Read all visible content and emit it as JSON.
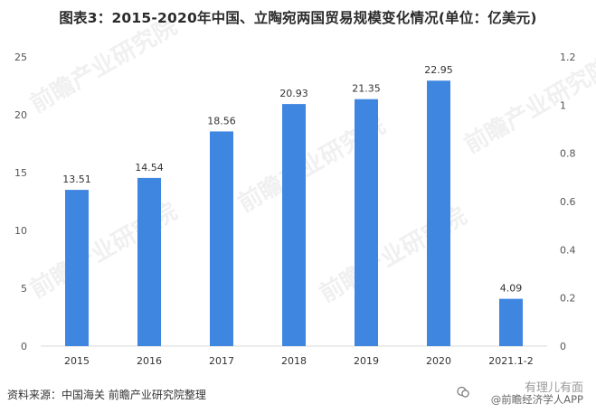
{
  "chart_data": {
    "type": "bar",
    "title": "图表3：2015-2020年中国、立陶宛两国贸易规模变化情况(单位：亿美元)",
    "categories": [
      "2015",
      "2016",
      "2017",
      "2018",
      "2019",
      "2020",
      "2021.1-2"
    ],
    "values": [
      13.51,
      14.54,
      18.56,
      20.93,
      21.35,
      22.95,
      4.09
    ],
    "data_labels": [
      "13.51",
      "14.54",
      "18.56",
      "20.93",
      "21.35",
      "22.95",
      "4.09"
    ],
    "ylim": [
      0,
      25
    ],
    "yticks": [
      "0",
      "5",
      "10",
      "15",
      "20",
      "25"
    ],
    "y2lim": [
      0,
      1.2
    ],
    "y2ticks": [
      "0",
      "0.2",
      "0.4",
      "0.6",
      "0.8",
      "1",
      "1.2"
    ],
    "grid": false,
    "bar_color": "#3f86e0"
  },
  "source_text": "资料来源：中国海关 前瞻产业研究院整理",
  "brand": {
    "line1": "有理儿有面",
    "line2": "@前瞻经济学人APP"
  },
  "watermark_text": "前瞻产业研究院"
}
